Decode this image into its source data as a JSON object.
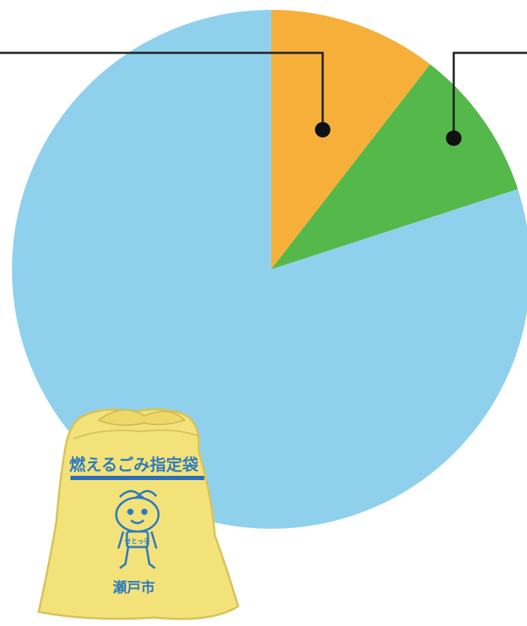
{
  "chart_data": {
    "type": "pie",
    "start": "top",
    "direction": "clockwise",
    "slices": [
      {
        "value": 10.5,
        "color": "#f6b03a"
      },
      {
        "value": 9.5,
        "color": "#55b84a"
      },
      {
        "value": 80.0,
        "color": "#8fd1ec"
      }
    ],
    "callouts": "leader lines to the top-left and top-right edges, labels cropped out of view"
  },
  "illustration": {
    "name": "designated burnable garbage bag with mascot",
    "bag_text": "燃えるごみ指定袋",
    "city_text": "瀬戸市",
    "mascot_text": "せとっ子",
    "colors": {
      "bag": "#f3e27a",
      "ink": "#2e7bbf",
      "stripe": "#2b6db6"
    }
  }
}
